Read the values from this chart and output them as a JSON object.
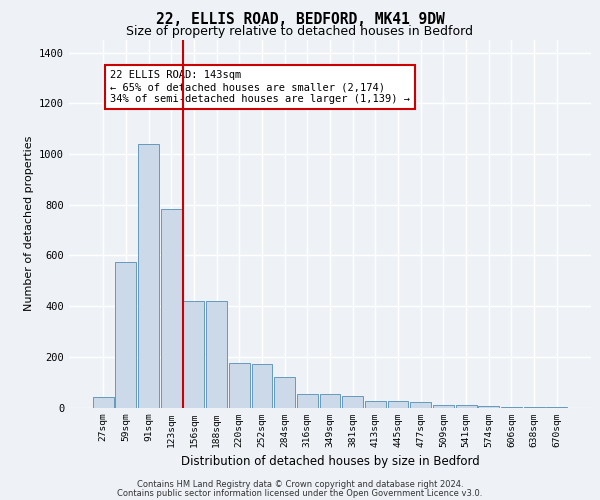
{
  "title1": "22, ELLIS ROAD, BEDFORD, MK41 9DW",
  "title2": "Size of property relative to detached houses in Bedford",
  "xlabel": "Distribution of detached houses by size in Bedford",
  "ylabel": "Number of detached properties",
  "bar_color": "#ccd9e8",
  "bar_edge_color": "#6699bb",
  "categories": [
    "27sqm",
    "59sqm",
    "91sqm",
    "123sqm",
    "156sqm",
    "188sqm",
    "220sqm",
    "252sqm",
    "284sqm",
    "316sqm",
    "349sqm",
    "381sqm",
    "413sqm",
    "445sqm",
    "477sqm",
    "509sqm",
    "541sqm",
    "574sqm",
    "606sqm",
    "638sqm",
    "670sqm"
  ],
  "values": [
    40,
    575,
    1040,
    785,
    420,
    420,
    175,
    170,
    120,
    55,
    55,
    45,
    25,
    25,
    20,
    10,
    10,
    5,
    3,
    2,
    1
  ],
  "vline_color": "#cc0000",
  "annotation_text": "22 ELLIS ROAD: 143sqm\n← 65% of detached houses are smaller (2,174)\n34% of semi-detached houses are larger (1,139) →",
  "ylim": [
    0,
    1450
  ],
  "yticks": [
    0,
    200,
    400,
    600,
    800,
    1000,
    1200,
    1400
  ],
  "footer1": "Contains HM Land Registry data © Crown copyright and database right 2024.",
  "footer2": "Contains public sector information licensed under the Open Government Licence v3.0.",
  "background_color": "#eef2f7",
  "plot_bg_color": "#eef2f7",
  "grid_color": "#ffffff"
}
